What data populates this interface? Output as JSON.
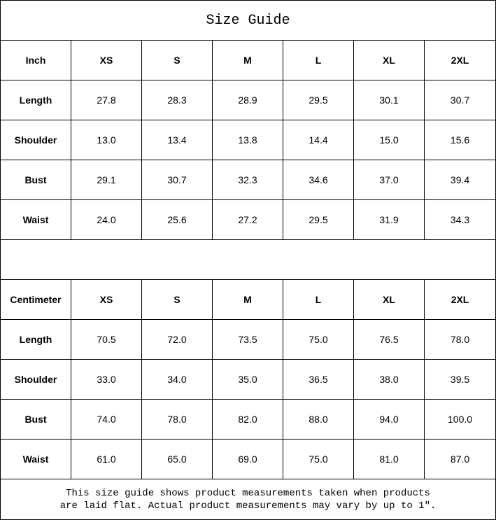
{
  "title": "Size Guide",
  "sizes": [
    "XS",
    "S",
    "M",
    "L",
    "XL",
    "2XL"
  ],
  "inch": {
    "label": "Inch",
    "rows": [
      {
        "name": "Length",
        "values": [
          "27.8",
          "28.3",
          "28.9",
          "29.5",
          "30.1",
          "30.7"
        ]
      },
      {
        "name": "Shoulder",
        "values": [
          "13.0",
          "13.4",
          "13.8",
          "14.4",
          "15.0",
          "15.6"
        ]
      },
      {
        "name": "Bust",
        "values": [
          "29.1",
          "30.7",
          "32.3",
          "34.6",
          "37.0",
          "39.4"
        ]
      },
      {
        "name": "Waist",
        "values": [
          "24.0",
          "25.6",
          "27.2",
          "29.5",
          "31.9",
          "34.3"
        ]
      }
    ]
  },
  "cm": {
    "label": "Centimeter",
    "rows": [
      {
        "name": "Length",
        "values": [
          "70.5",
          "72.0",
          "73.5",
          "75.0",
          "76.5",
          "78.0"
        ]
      },
      {
        "name": "Shoulder",
        "values": [
          "33.0",
          "34.0",
          "35.0",
          "36.5",
          "38.0",
          "39.5"
        ]
      },
      {
        "name": "Bust",
        "values": [
          "74.0",
          "78.0",
          "82.0",
          "88.0",
          "94.0",
          "100.0"
        ]
      },
      {
        "name": "Waist",
        "values": [
          "61.0",
          "65.0",
          "69.0",
          "75.0",
          "81.0",
          "87.0"
        ]
      }
    ]
  },
  "note": {
    "line1": "This size guide shows product measurements taken when products",
    "line2": "are laid flat. Actual product measurements may vary by up to 1″."
  }
}
